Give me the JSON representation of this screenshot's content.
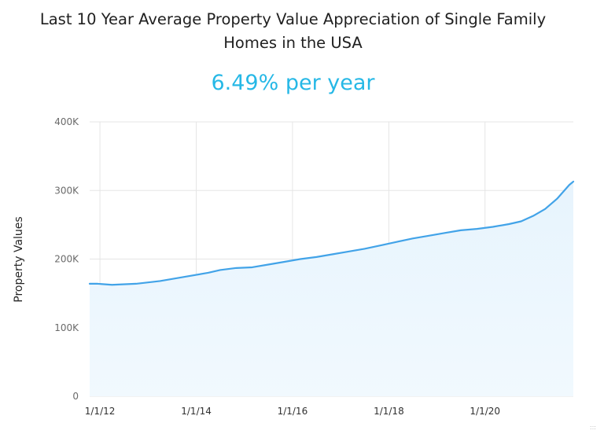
{
  "colors": {
    "accent": "#26b8e6",
    "line": "#42a3e8",
    "area_fill": "#e7f4fd",
    "grid": "#e5e5e5",
    "title_text": "#1f1f1f"
  },
  "chart_data": {
    "type": "area",
    "title": "Last 10 Year Average Property Value Appreciation of Single Family Homes in the USA",
    "title_lines": [
      "Last 10 Year Average Property Value Appreciation of Single Family",
      "Homes in the USA"
    ],
    "subtitle": "6.49% per year",
    "xlabel": "",
    "ylabel": "Property Values",
    "xlim": [
      "2011-10-15",
      "2021-11-01"
    ],
    "ylim": [
      0,
      400000
    ],
    "y_ticks": [
      {
        "value": 0,
        "label": "0"
      },
      {
        "value": 100000,
        "label": "100K"
      },
      {
        "value": 200000,
        "label": "200K"
      },
      {
        "value": 300000,
        "label": "300K"
      },
      {
        "value": 400000,
        "label": "400K"
      }
    ],
    "x_ticks": [
      {
        "value": "2012-01-01",
        "label": "1/1/12"
      },
      {
        "value": "2014-01-01",
        "label": "1/1/14"
      },
      {
        "value": "2016-01-01",
        "label": "1/1/16"
      },
      {
        "value": "2018-01-01",
        "label": "1/1/18"
      },
      {
        "value": "2020-01-01",
        "label": "1/1/20"
      }
    ],
    "grid": true,
    "series": [
      {
        "x": [
          "2011-10-15",
          "2011-12-15",
          "2012-04-01",
          "2012-10-01",
          "2013-04-01",
          "2013-10-01",
          "2014-04-01",
          "2014-07-01",
          "2014-11-01",
          "2015-03-01",
          "2015-07-01",
          "2015-11-01",
          "2016-03-01",
          "2016-07-01",
          "2016-11-01",
          "2017-03-01",
          "2017-07-01",
          "2017-11-01",
          "2018-03-01",
          "2018-07-01",
          "2018-11-01",
          "2019-03-01",
          "2019-07-01",
          "2019-11-01",
          "2020-03-01",
          "2020-07-01",
          "2020-10-01",
          "2021-01-01",
          "2021-04-01",
          "2021-07-01",
          "2021-10-01",
          "2021-11-01"
        ],
        "values": [
          164000,
          164000,
          162500,
          164000,
          168000,
          174000,
          180000,
          184000,
          187000,
          188000,
          192000,
          196000,
          200000,
          203000,
          207000,
          211000,
          215000,
          220000,
          225000,
          230000,
          234000,
          238000,
          242000,
          244000,
          247000,
          251000,
          255000,
          263000,
          273000,
          288000,
          308000,
          313000
        ]
      }
    ]
  }
}
